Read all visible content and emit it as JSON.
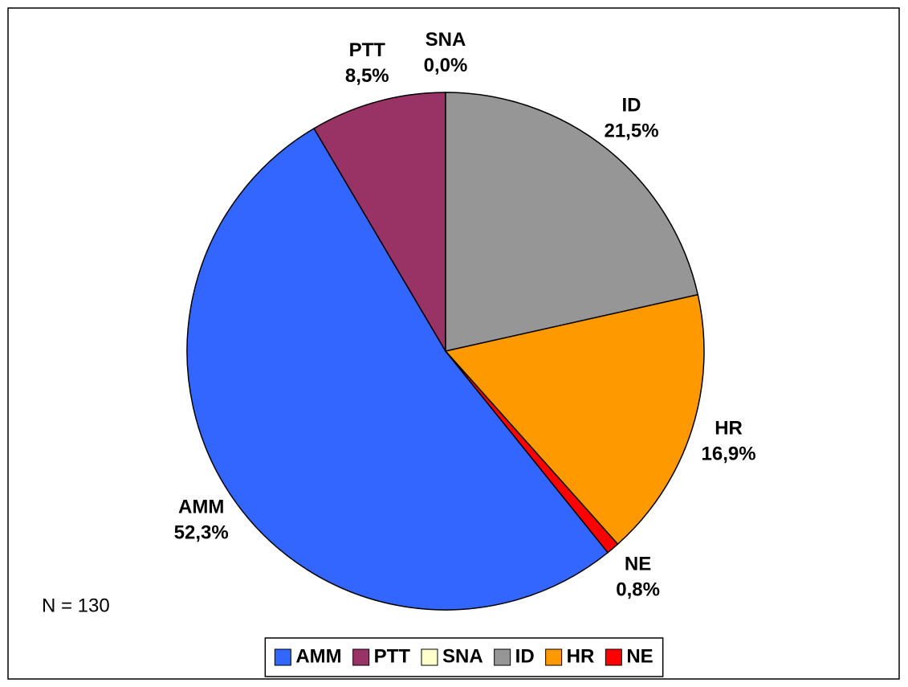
{
  "chart_data": {
    "type": "pie",
    "categories": [
      "AMM",
      "PTT",
      "SNA",
      "ID",
      "HR",
      "NE"
    ],
    "values": [
      52.3,
      8.5,
      0.0,
      21.5,
      16.9,
      0.8
    ],
    "value_labels": [
      "52,3%",
      "8,5%",
      "0,0%",
      "21,5%",
      "16,9%",
      "0,8%"
    ],
    "colors": [
      "#3366ff",
      "#993366",
      "#ffffcc",
      "#969696",
      "#ff9900",
      "#ff0000"
    ],
    "annotation": "N = 130",
    "legend": "bottom"
  }
}
